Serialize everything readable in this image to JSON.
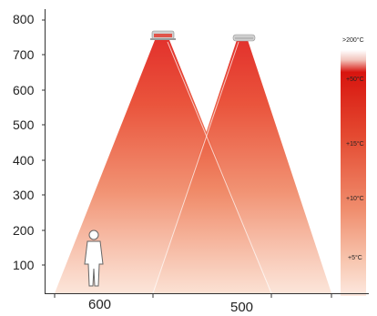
{
  "y_axis": {
    "ticks": [
      "800",
      "700",
      "600",
      "500",
      "400",
      "300",
      "200",
      "100"
    ]
  },
  "x_axis": {
    "labels": [
      "600",
      "500"
    ]
  },
  "legend": {
    "labels": [
      ">200°C",
      "+50°C",
      "+15°C",
      "+10°C",
      "+5°C"
    ]
  },
  "colors": {
    "heat_hot": "#e0201a",
    "heat_warm": "#ea5e3c",
    "heat_cool": "#f6c9b4",
    "heat_faint": "#fdeee6",
    "heater_body": "#c8c8c8"
  },
  "icons": {
    "heater_left": "ceiling-heater-icon",
    "heater_right": "ceiling-heater-icon",
    "person": "person-silhouette-icon"
  }
}
